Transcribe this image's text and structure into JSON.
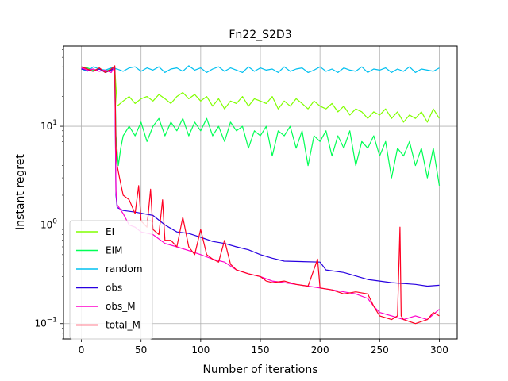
{
  "chart_data": {
    "type": "line",
    "title": "Fn22_S2D3",
    "xlabel": "Number of iterations",
    "ylabel": "Instant regret",
    "yscale": "log",
    "xlim": [
      -15,
      315
    ],
    "ylim": [
      0.07,
      65
    ],
    "xticks": [
      0,
      50,
      100,
      150,
      200,
      250,
      300
    ],
    "yticks": [
      {
        "value": 0.1,
        "base": "10",
        "exp": "−1"
      },
      {
        "value": 1,
        "base": "10",
        "exp": "0"
      },
      {
        "value": 10,
        "base": "10",
        "exp": "1"
      }
    ],
    "grid": true,
    "legend_position": "lower-left",
    "series": [
      {
        "name": "EI",
        "color": "#80ff00",
        "points": [
          [
            0,
            40
          ],
          [
            5,
            38
          ],
          [
            10,
            36
          ],
          [
            15,
            39
          ],
          [
            20,
            35
          ],
          [
            25,
            37
          ],
          [
            28,
            40
          ],
          [
            29,
            25
          ],
          [
            30,
            16
          ],
          [
            35,
            18
          ],
          [
            40,
            20
          ],
          [
            45,
            17
          ],
          [
            50,
            19
          ],
          [
            55,
            20
          ],
          [
            60,
            18
          ],
          [
            65,
            21
          ],
          [
            70,
            19
          ],
          [
            75,
            17
          ],
          [
            80,
            20
          ],
          [
            85,
            22
          ],
          [
            90,
            19
          ],
          [
            95,
            21
          ],
          [
            100,
            18
          ],
          [
            105,
            20
          ],
          [
            110,
            16
          ],
          [
            115,
            19
          ],
          [
            120,
            15
          ],
          [
            125,
            18
          ],
          [
            130,
            17
          ],
          [
            135,
            20
          ],
          [
            140,
            16
          ],
          [
            145,
            19
          ],
          [
            150,
            18
          ],
          [
            155,
            17
          ],
          [
            160,
            20
          ],
          [
            165,
            15
          ],
          [
            170,
            18
          ],
          [
            175,
            16
          ],
          [
            180,
            19
          ],
          [
            185,
            17
          ],
          [
            190,
            15
          ],
          [
            195,
            18
          ],
          [
            200,
            16
          ],
          [
            205,
            15
          ],
          [
            210,
            17
          ],
          [
            215,
            14
          ],
          [
            220,
            16
          ],
          [
            225,
            13
          ],
          [
            230,
            15
          ],
          [
            235,
            14
          ],
          [
            240,
            12
          ],
          [
            245,
            14
          ],
          [
            250,
            13
          ],
          [
            255,
            15
          ],
          [
            260,
            12
          ],
          [
            265,
            14
          ],
          [
            270,
            11
          ],
          [
            275,
            13
          ],
          [
            280,
            12
          ],
          [
            285,
            14
          ],
          [
            290,
            11
          ],
          [
            295,
            15
          ],
          [
            300,
            12
          ]
        ]
      },
      {
        "name": "EIM",
        "color": "#00ff55",
        "points": [
          [
            0,
            40
          ],
          [
            5,
            39
          ],
          [
            10,
            37
          ],
          [
            15,
            38
          ],
          [
            20,
            36
          ],
          [
            25,
            38
          ],
          [
            28,
            40
          ],
          [
            29,
            8
          ],
          [
            31,
            4
          ],
          [
            33,
            6
          ],
          [
            35,
            8
          ],
          [
            40,
            10
          ],
          [
            45,
            8
          ],
          [
            50,
            11
          ],
          [
            55,
            7
          ],
          [
            60,
            10
          ],
          [
            65,
            12
          ],
          [
            70,
            8
          ],
          [
            75,
            11
          ],
          [
            80,
            9
          ],
          [
            85,
            12
          ],
          [
            90,
            8
          ],
          [
            95,
            11
          ],
          [
            100,
            9
          ],
          [
            105,
            12
          ],
          [
            110,
            8
          ],
          [
            115,
            10
          ],
          [
            120,
            7
          ],
          [
            125,
            11
          ],
          [
            130,
            9
          ],
          [
            135,
            10
          ],
          [
            140,
            6
          ],
          [
            145,
            9
          ],
          [
            150,
            8
          ],
          [
            155,
            10
          ],
          [
            160,
            5
          ],
          [
            165,
            9
          ],
          [
            170,
            8
          ],
          [
            175,
            10
          ],
          [
            180,
            6
          ],
          [
            185,
            9
          ],
          [
            190,
            4
          ],
          [
            195,
            8
          ],
          [
            200,
            7
          ],
          [
            205,
            9
          ],
          [
            210,
            5
          ],
          [
            215,
            8
          ],
          [
            220,
            6
          ],
          [
            225,
            9
          ],
          [
            230,
            4
          ],
          [
            235,
            7
          ],
          [
            240,
            6
          ],
          [
            245,
            8
          ],
          [
            250,
            5
          ],
          [
            255,
            7
          ],
          [
            260,
            3
          ],
          [
            265,
            6
          ],
          [
            270,
            5
          ],
          [
            275,
            7
          ],
          [
            280,
            4
          ],
          [
            285,
            6
          ],
          [
            290,
            3
          ],
          [
            295,
            6
          ],
          [
            300,
            2.5
          ]
        ]
      },
      {
        "name": "random",
        "color": "#00c0f0",
        "points": [
          [
            0,
            38
          ],
          [
            5,
            36
          ],
          [
            10,
            40
          ],
          [
            15,
            38
          ],
          [
            20,
            37
          ],
          [
            25,
            39
          ],
          [
            30,
            38
          ],
          [
            35,
            36
          ],
          [
            40,
            39
          ],
          [
            45,
            40
          ],
          [
            50,
            36
          ],
          [
            55,
            39
          ],
          [
            60,
            37
          ],
          [
            65,
            40
          ],
          [
            70,
            35
          ],
          [
            75,
            38
          ],
          [
            80,
            39
          ],
          [
            85,
            36
          ],
          [
            90,
            41
          ],
          [
            95,
            37
          ],
          [
            100,
            39
          ],
          [
            105,
            35
          ],
          [
            110,
            38
          ],
          [
            115,
            40
          ],
          [
            120,
            36
          ],
          [
            125,
            39
          ],
          [
            130,
            37
          ],
          [
            135,
            35
          ],
          [
            140,
            40
          ],
          [
            145,
            36
          ],
          [
            150,
            39
          ],
          [
            155,
            37
          ],
          [
            160,
            38
          ],
          [
            165,
            35
          ],
          [
            170,
            40
          ],
          [
            175,
            36
          ],
          [
            180,
            38
          ],
          [
            185,
            39
          ],
          [
            190,
            35
          ],
          [
            195,
            37
          ],
          [
            200,
            40
          ],
          [
            205,
            36
          ],
          [
            210,
            38
          ],
          [
            215,
            35
          ],
          [
            220,
            39
          ],
          [
            225,
            37
          ],
          [
            230,
            36
          ],
          [
            235,
            40
          ],
          [
            240,
            35
          ],
          [
            245,
            38
          ],
          [
            250,
            37
          ],
          [
            255,
            39
          ],
          [
            260,
            35
          ],
          [
            265,
            38
          ],
          [
            270,
            36
          ],
          [
            275,
            40
          ],
          [
            280,
            35
          ],
          [
            285,
            38
          ],
          [
            290,
            37
          ],
          [
            295,
            36
          ],
          [
            300,
            39
          ]
        ]
      },
      {
        "name": "obs",
        "color": "#2800e0",
        "points": [
          [
            0,
            38
          ],
          [
            5,
            37
          ],
          [
            10,
            36
          ],
          [
            15,
            38
          ],
          [
            20,
            35
          ],
          [
            25,
            37
          ],
          [
            28,
            39
          ],
          [
            29,
            2.0
          ],
          [
            30,
            1.5
          ],
          [
            35,
            1.4
          ],
          [
            45,
            1.35
          ],
          [
            60,
            1.25
          ],
          [
            70,
            1.0
          ],
          [
            80,
            0.85
          ],
          [
            90,
            0.82
          ],
          [
            100,
            0.75
          ],
          [
            110,
            0.68
          ],
          [
            120,
            0.65
          ],
          [
            130,
            0.6
          ],
          [
            140,
            0.56
          ],
          [
            150,
            0.5
          ],
          [
            160,
            0.46
          ],
          [
            170,
            0.43
          ],
          [
            200,
            0.42
          ],
          [
            205,
            0.35
          ],
          [
            220,
            0.33
          ],
          [
            240,
            0.28
          ],
          [
            250,
            0.27
          ],
          [
            260,
            0.26
          ],
          [
            280,
            0.25
          ],
          [
            290,
            0.24
          ],
          [
            300,
            0.245
          ]
        ]
      },
      {
        "name": "obs_M",
        "color": "#ff00cc",
        "points": [
          [
            0,
            39
          ],
          [
            5,
            37
          ],
          [
            10,
            38
          ],
          [
            15,
            36
          ],
          [
            20,
            37
          ],
          [
            25,
            35
          ],
          [
            28,
            40
          ],
          [
            29,
            2.2
          ],
          [
            30,
            1.6
          ],
          [
            35,
            1.3
          ],
          [
            40,
            1.0
          ],
          [
            45,
            0.95
          ],
          [
            50,
            0.85
          ],
          [
            60,
            0.8
          ],
          [
            70,
            0.65
          ],
          [
            80,
            0.6
          ],
          [
            90,
            0.55
          ],
          [
            100,
            0.5
          ],
          [
            110,
            0.45
          ],
          [
            120,
            0.42
          ],
          [
            130,
            0.35
          ],
          [
            140,
            0.32
          ],
          [
            150,
            0.3
          ],
          [
            160,
            0.27
          ],
          [
            170,
            0.26
          ],
          [
            180,
            0.25
          ],
          [
            190,
            0.24
          ],
          [
            200,
            0.23
          ],
          [
            210,
            0.22
          ],
          [
            220,
            0.21
          ],
          [
            230,
            0.2
          ],
          [
            240,
            0.18
          ],
          [
            245,
            0.15
          ],
          [
            250,
            0.13
          ],
          [
            260,
            0.12
          ],
          [
            270,
            0.11
          ],
          [
            280,
            0.12
          ],
          [
            290,
            0.11
          ],
          [
            300,
            0.14
          ]
        ]
      },
      {
        "name": "total_M",
        "color": "#ff0022",
        "points": [
          [
            0,
            40
          ],
          [
            5,
            38
          ],
          [
            10,
            36
          ],
          [
            15,
            39
          ],
          [
            20,
            35
          ],
          [
            25,
            38
          ],
          [
            28,
            41
          ],
          [
            29,
            6
          ],
          [
            30,
            4
          ],
          [
            32,
            3
          ],
          [
            35,
            2
          ],
          [
            40,
            1.8
          ],
          [
            45,
            1.3
          ],
          [
            48,
            2.5
          ],
          [
            50,
            1.1
          ],
          [
            55,
            0.95
          ],
          [
            58,
            2.3
          ],
          [
            60,
            0.9
          ],
          [
            65,
            0.8
          ],
          [
            68,
            1.8
          ],
          [
            70,
            0.7
          ],
          [
            75,
            0.7
          ],
          [
            80,
            0.6
          ],
          [
            85,
            1.2
          ],
          [
            90,
            0.6
          ],
          [
            95,
            0.5
          ],
          [
            100,
            0.9
          ],
          [
            105,
            0.5
          ],
          [
            110,
            0.45
          ],
          [
            115,
            0.42
          ],
          [
            120,
            0.7
          ],
          [
            125,
            0.4
          ],
          [
            130,
            0.35
          ],
          [
            140,
            0.32
          ],
          [
            150,
            0.3
          ],
          [
            155,
            0.27
          ],
          [
            160,
            0.26
          ],
          [
            170,
            0.27
          ],
          [
            180,
            0.25
          ],
          [
            190,
            0.24
          ],
          [
            198,
            0.45
          ],
          [
            200,
            0.23
          ],
          [
            210,
            0.22
          ],
          [
            220,
            0.2
          ],
          [
            230,
            0.21
          ],
          [
            240,
            0.2
          ],
          [
            245,
            0.15
          ],
          [
            250,
            0.12
          ],
          [
            260,
            0.11
          ],
          [
            265,
            0.12
          ],
          [
            267,
            0.95
          ],
          [
            268,
            0.12
          ],
          [
            270,
            0.11
          ],
          [
            280,
            0.1
          ],
          [
            290,
            0.11
          ],
          [
            295,
            0.13
          ],
          [
            300,
            0.12
          ]
        ]
      }
    ]
  }
}
